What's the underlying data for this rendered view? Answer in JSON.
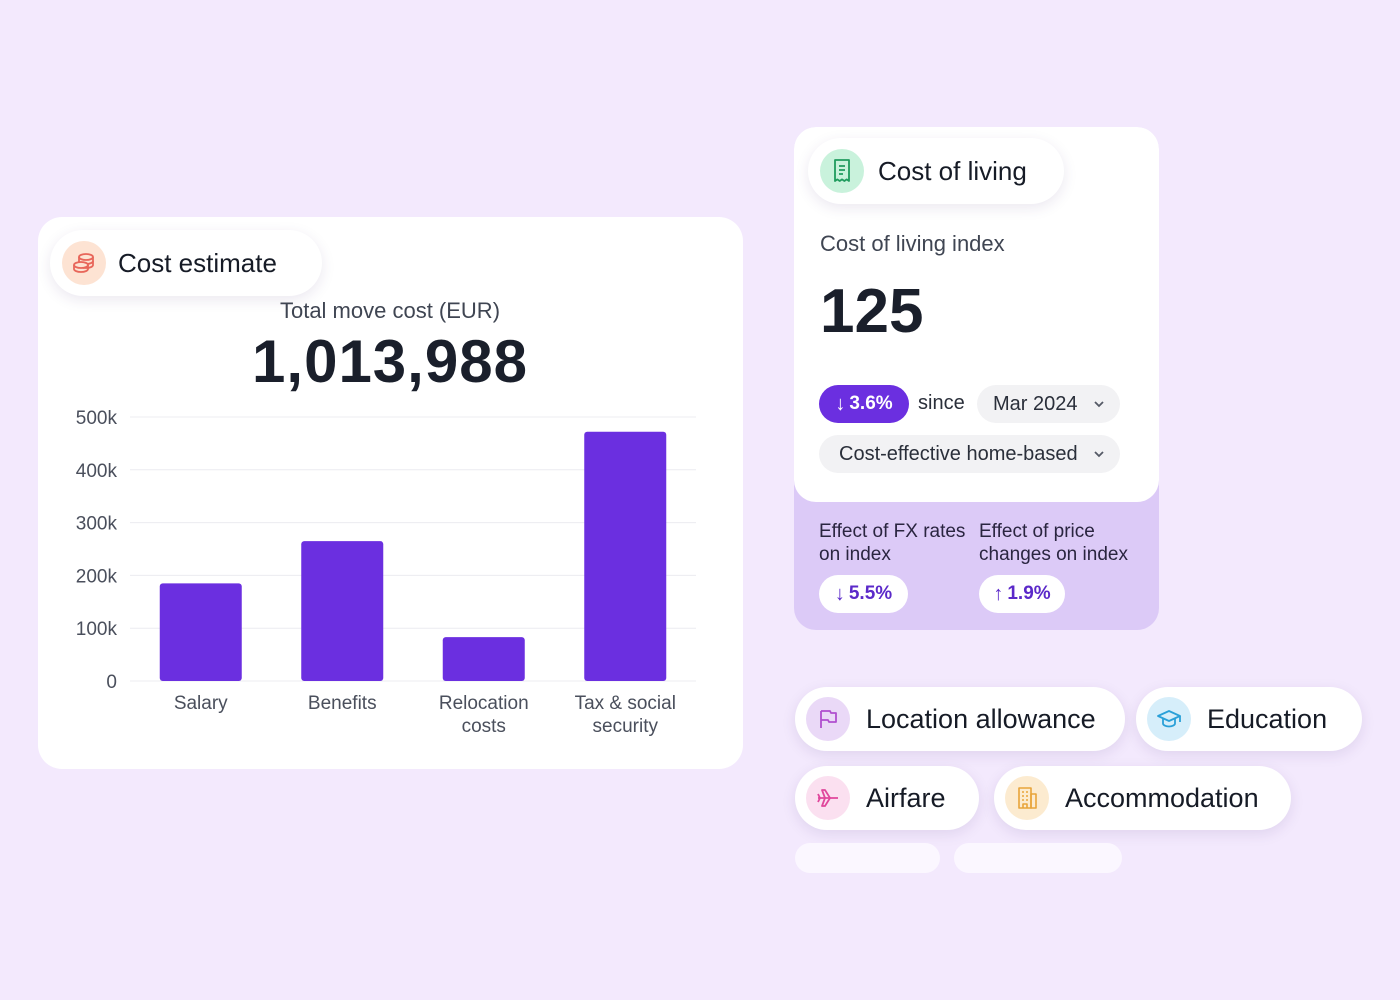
{
  "cost_estimate": {
    "pill_label": "Cost estimate",
    "pill_icon": "coins-icon",
    "subtitle": "Total move cost (EUR)",
    "total": "1,013,988"
  },
  "chart_data": {
    "type": "bar",
    "categories": [
      "Salary",
      "Benefits",
      "Relocation costs",
      "Tax & social security"
    ],
    "category_lines": [
      [
        "Salary"
      ],
      [
        "Benefits"
      ],
      [
        "Relocation",
        "costs"
      ],
      [
        "Tax & social",
        "security"
      ]
    ],
    "values": [
      185000,
      265000,
      83000,
      472000
    ],
    "yticks": [
      0,
      100000,
      200000,
      300000,
      400000,
      500000
    ],
    "ytick_labels": [
      "0",
      "100k",
      "200k",
      "300k",
      "400k",
      "500k"
    ],
    "ylim": [
      0,
      500000
    ],
    "title": "",
    "xlabel": "",
    "ylabel": "",
    "bar_color": "#6b2fe0",
    "grid": true
  },
  "cost_of_living": {
    "pill_label": "Cost of living",
    "pill_icon": "receipt-icon",
    "index_label": "Cost of living index",
    "index_value": "125",
    "change": "3.6%",
    "change_direction": "down",
    "since_label": "since",
    "period": "Mar 2024",
    "family_type": "Cost-effective home-based",
    "fx_effect_label": "Effect of FX rates on index",
    "fx_effect_value": "5.5%",
    "fx_effect_direction": "down",
    "price_effect_label": "Effect of price changes on index",
    "price_effect_value": "1.9%",
    "price_effect_direction": "up"
  },
  "categories": [
    {
      "label": "Location allowance",
      "icon": "flag-icon",
      "color": "#b04fcf",
      "bg": "#ead9f7"
    },
    {
      "label": "Education",
      "icon": "graduation-cap-icon",
      "color": "#2aa0d8",
      "bg": "#d6eefa"
    },
    {
      "label": "Airfare",
      "icon": "airplane-icon",
      "color": "#e0479c",
      "bg": "#fbe0f0"
    },
    {
      "label": "Accommodation",
      "icon": "building-icon",
      "color": "#e8a43a",
      "bg": "#fcebd0"
    }
  ],
  "colors": {
    "background": "#f3e9fd",
    "accent": "#6b2fe0",
    "effect_panel": "#dccaf7"
  }
}
